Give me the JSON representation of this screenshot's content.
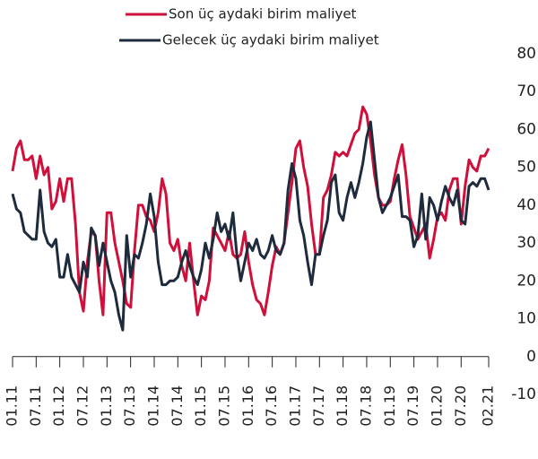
{
  "chart_data": {
    "type": "line",
    "categories": [
      "01.11",
      null,
      null,
      null,
      null,
      null,
      "07.11",
      null,
      null,
      null,
      null,
      null,
      "01.12",
      null,
      null,
      null,
      null,
      null,
      "07.12",
      null,
      null,
      null,
      null,
      null,
      "01.13",
      null,
      null,
      null,
      null,
      null,
      "07.13",
      null,
      null,
      null,
      null,
      null,
      "01.14",
      null,
      null,
      null,
      null,
      null,
      "07.14",
      null,
      null,
      null,
      null,
      null,
      "01.15",
      null,
      null,
      null,
      null,
      null,
      "07.15",
      null,
      null,
      null,
      null,
      null,
      "01.16",
      null,
      null,
      null,
      null,
      null,
      "07.16",
      null,
      null,
      null,
      null,
      null,
      "01.17",
      null,
      null,
      null,
      null,
      null,
      "07.17",
      null,
      null,
      null,
      null,
      null,
      "01.18",
      null,
      null,
      null,
      null,
      null,
      "07.18",
      null,
      null,
      null,
      null,
      null,
      "01.19",
      null,
      null,
      null,
      null,
      null,
      "07.19",
      null,
      null,
      null,
      null,
      null,
      "01.20",
      null,
      null,
      null,
      null,
      null,
      "07.20",
      null,
      null,
      null,
      null,
      null,
      null,
      "02.21"
    ],
    "series": [
      {
        "name": "Son üç aydaki birim maliyet",
        "color": "#d0103a",
        "values": [
          49,
          55,
          57,
          52,
          52,
          53,
          47,
          53,
          48,
          50,
          39,
          41,
          47,
          41,
          47,
          47,
          35,
          17,
          12,
          25,
          33,
          32,
          20,
          11,
          38,
          38,
          30,
          25,
          20,
          14,
          13,
          28,
          40,
          40,
          37,
          36,
          33,
          38,
          47,
          43,
          30,
          28,
          31,
          24,
          20,
          30,
          20,
          11,
          16,
          15,
          20,
          34,
          32,
          30,
          28,
          33,
          27,
          26,
          27,
          33,
          25,
          19,
          15,
          14,
          11,
          17,
          24,
          29,
          27,
          30,
          38,
          46,
          55,
          57,
          50,
          45,
          35,
          27,
          27,
          42,
          44,
          48,
          54,
          53,
          54,
          53,
          56,
          59,
          60,
          66,
          64,
          57,
          48,
          42,
          40,
          40,
          41,
          47,
          52,
          56,
          48,
          37,
          34,
          31,
          33,
          35,
          26,
          31,
          37,
          38,
          36,
          44,
          47,
          47,
          35,
          45,
          52,
          50,
          49,
          53,
          53,
          55
        ]
      },
      {
        "name": "Gelecek üç aydaki birim maliyet",
        "color": "#1e2b3c",
        "values": [
          43,
          39,
          38,
          33,
          32,
          31,
          31,
          44,
          33,
          30,
          29,
          31,
          21,
          21,
          27,
          21,
          19,
          17,
          25,
          21,
          34,
          32,
          24,
          30,
          25,
          20,
          17,
          11,
          7,
          32,
          21,
          27,
          26,
          30,
          35,
          43,
          37,
          25,
          19,
          19,
          20,
          20,
          21,
          25,
          28,
          24,
          21,
          19,
          23,
          30,
          26,
          31,
          38,
          33,
          35,
          31,
          38,
          27,
          20,
          25,
          30,
          28,
          31,
          27,
          26,
          28,
          32,
          28,
          27,
          30,
          44,
          51,
          47,
          36,
          32,
          25,
          19,
          27,
          27,
          32,
          36,
          46,
          48,
          38,
          36,
          42,
          46,
          42,
          46,
          51,
          58,
          62,
          52,
          42,
          38,
          40,
          42,
          45,
          48,
          37,
          37,
          36,
          29,
          32,
          43,
          31,
          42,
          40,
          36,
          41,
          45,
          42,
          40,
          44,
          36,
          35,
          45,
          46,
          45,
          47,
          47,
          44
        ]
      }
    ],
    "ylim": [
      -10,
      80
    ],
    "yticks": [
      -10,
      0,
      10,
      20,
      30,
      40,
      50,
      60,
      70,
      80
    ],
    "grid": false
  }
}
